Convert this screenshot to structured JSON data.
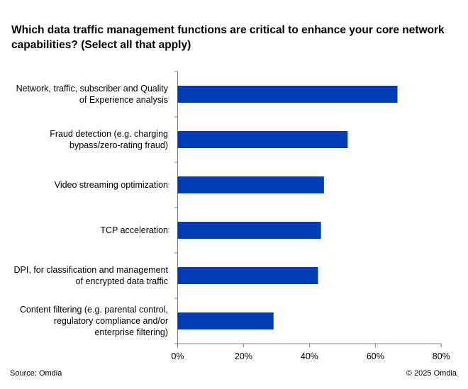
{
  "chart_data": {
    "type": "bar",
    "orientation": "horizontal",
    "title": "Which data traffic management functions are critical to enhance your core network capabilities? (Select all that apply)",
    "categories": [
      "Network, traffic, subscriber and Quality of Experience analysis",
      "Fraud detection (e.g. charging bypass/zero-rating fraud)",
      "Video streaming optimization",
      "TCP acceleration",
      "DPI, for classification and management of encrypted data traffic",
      "Content filtering (e.g. parental control, regulatory compliance and/or enterprise filtering)"
    ],
    "values": [
      66.7,
      51.6,
      44.4,
      43.5,
      42.6,
      29.1
    ],
    "xlim": [
      0,
      80
    ],
    "x_ticks": [
      "0%",
      "20%",
      "40%",
      "60%",
      "80%"
    ],
    "grid": false,
    "bar_color": "#003cb4",
    "xlabel": "",
    "ylabel": ""
  },
  "footer": {
    "source": "Source: Omdia",
    "copyright": "© 2025 Omdia"
  }
}
